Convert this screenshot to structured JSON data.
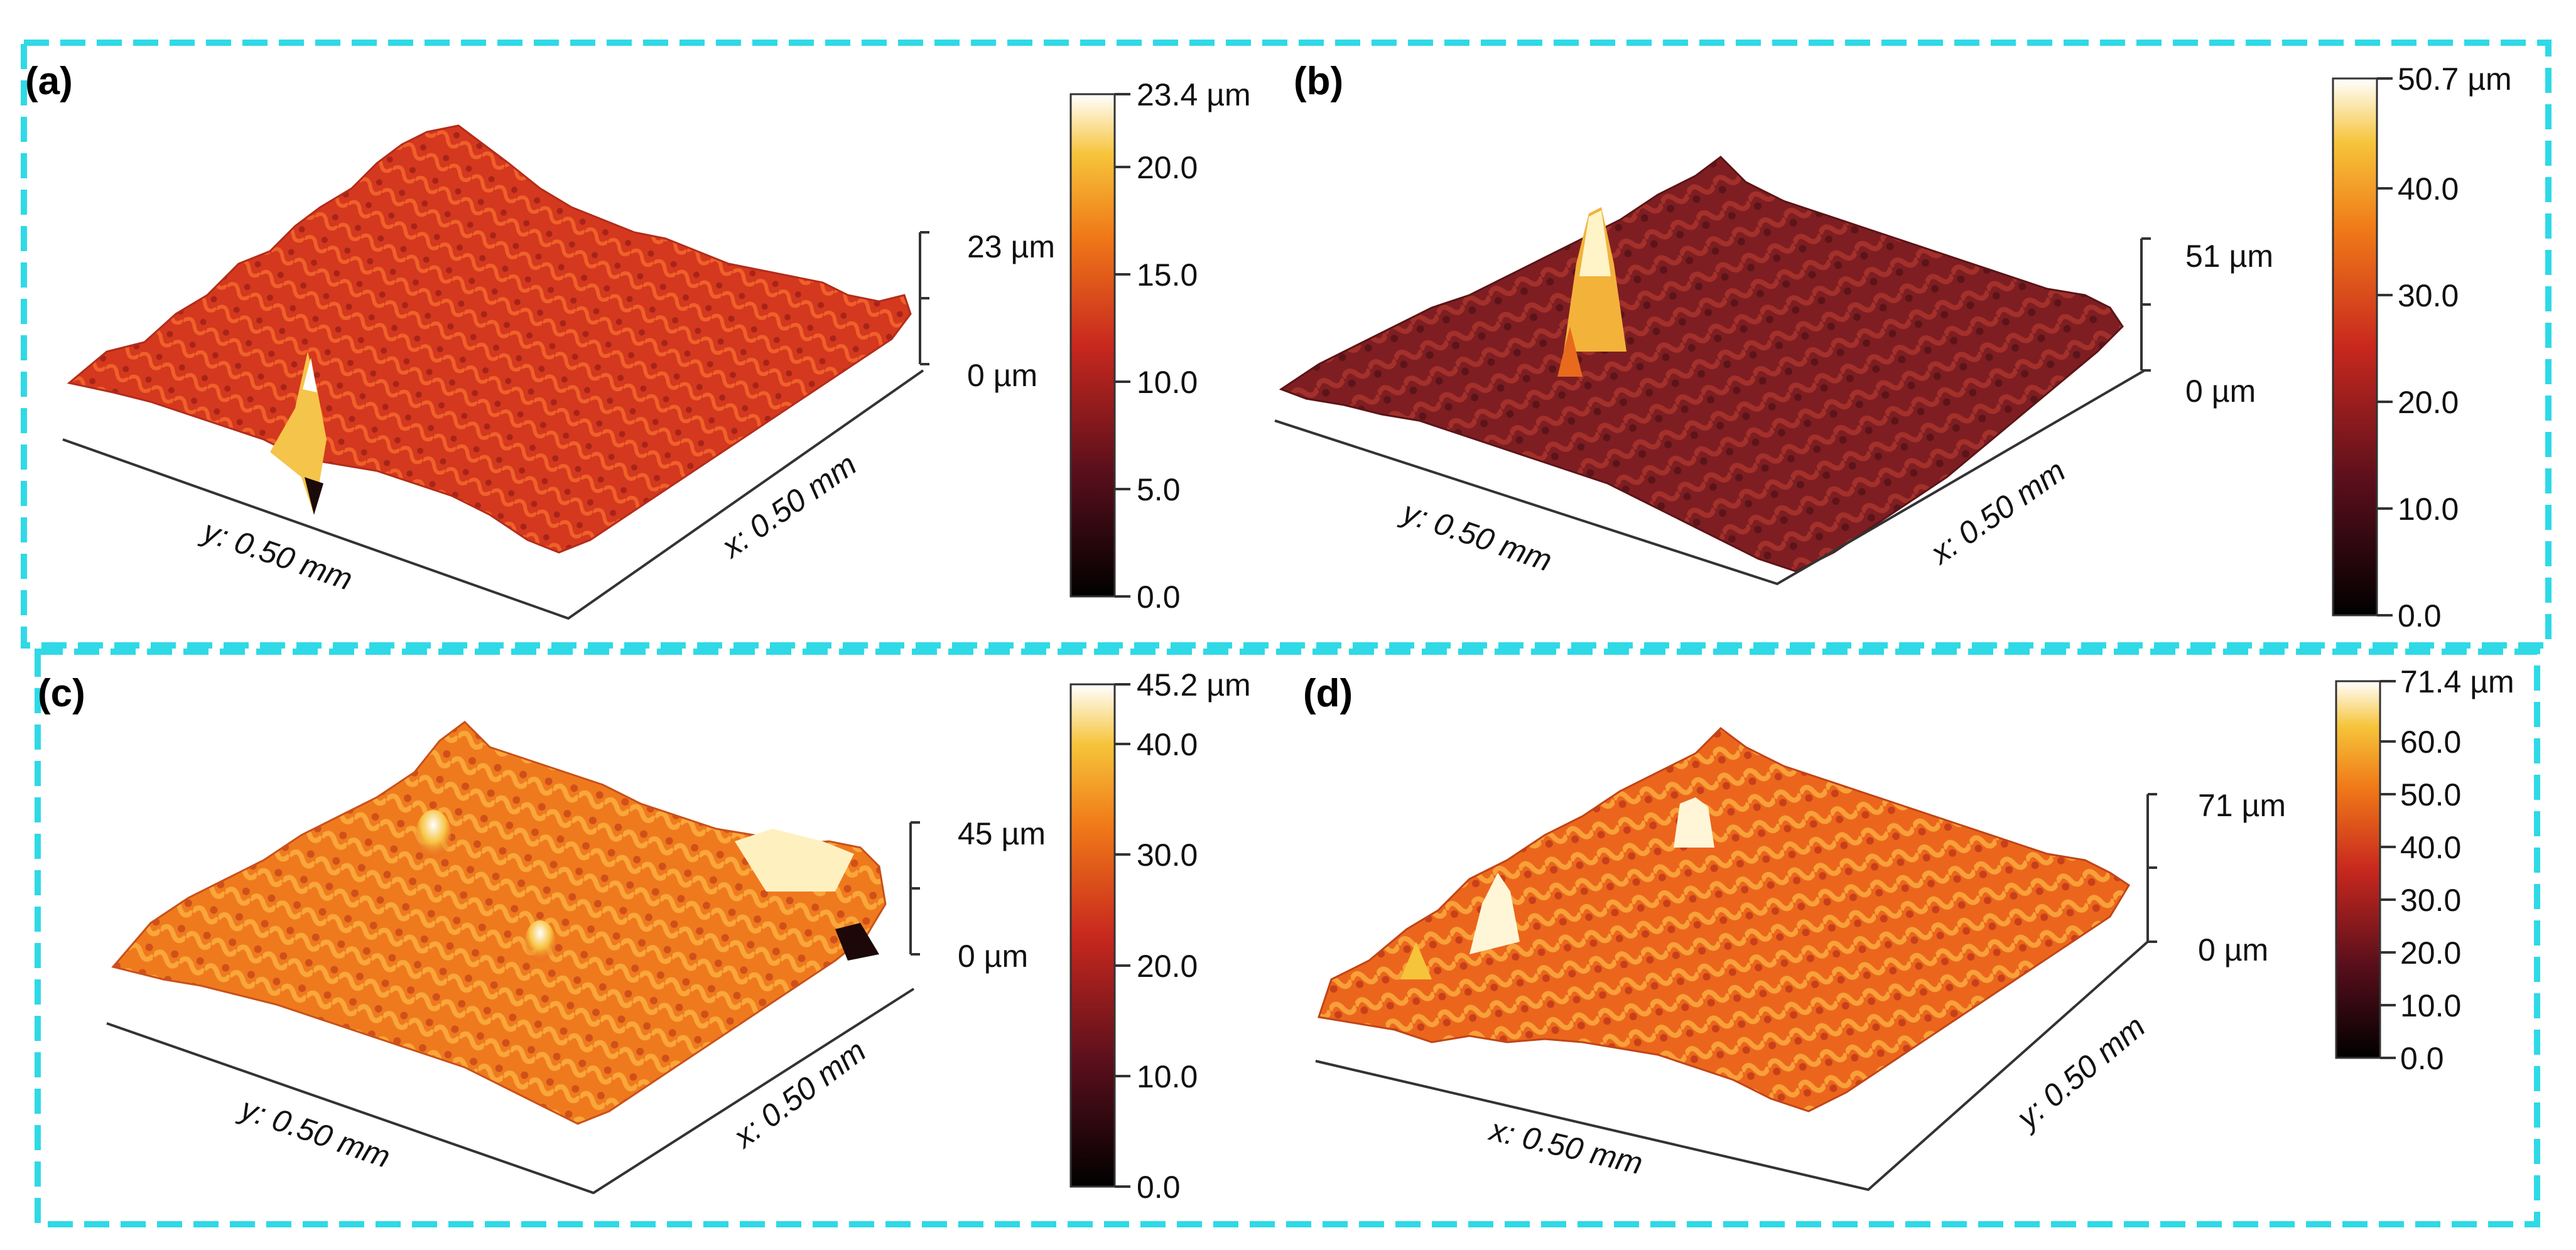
{
  "figure": {
    "panels": [
      {
        "letter": "(a)",
        "height_top": "23 µm",
        "height_bottom": "0 µm",
        "axis_left": "y: 0.50 mm",
        "axis_right": "x: 0.50 mm",
        "colorbar_max": "23.4 µm",
        "colorbar_ticks": [
          "20.0",
          "15.0",
          "10.0",
          "5.0",
          "0.0"
        ],
        "surface_tone": "#d8401f",
        "peak_tone": "#ffffff"
      },
      {
        "letter": "(b)",
        "height_top": "51 µm",
        "height_bottom": "0 µm",
        "axis_left": "y: 0.50 mm",
        "axis_right": "x: 0.50 mm",
        "colorbar_max": "50.7 µm",
        "colorbar_ticks": [
          "40.0",
          "30.0",
          "20.0",
          "10.0",
          "0.0"
        ],
        "surface_tone": "#8c2224",
        "peak_tone": "#fff4c8"
      },
      {
        "letter": "(c)",
        "height_top": "45 µm",
        "height_bottom": "0 µm",
        "axis_left": "y: 0.50 mm",
        "axis_right": "x: 0.50 mm",
        "colorbar_max": "45.2 µm",
        "colorbar_ticks": [
          "40.0",
          "30.0",
          "20.0",
          "10.0",
          "0.0"
        ],
        "surface_tone": "#f0781c",
        "peak_tone": "#fff0c0"
      },
      {
        "letter": "(d)",
        "height_top": "71 µm",
        "height_bottom": "0 µm",
        "axis_left": "x: 0.50 mm",
        "axis_right": "y: 0.50 mm",
        "colorbar_max": "71.4 µm",
        "colorbar_ticks": [
          "60.0",
          "50.0",
          "40.0",
          "30.0",
          "20.0",
          "10.0",
          "0.0"
        ],
        "surface_tone": "#ec6a1c",
        "peak_tone": "#fff6d8"
      }
    ],
    "colors": {
      "frame": "#2fd9e6",
      "cmap_low": "#000000",
      "cmap_mid": "#c8281e",
      "cmap_high": "#ffffff"
    }
  }
}
